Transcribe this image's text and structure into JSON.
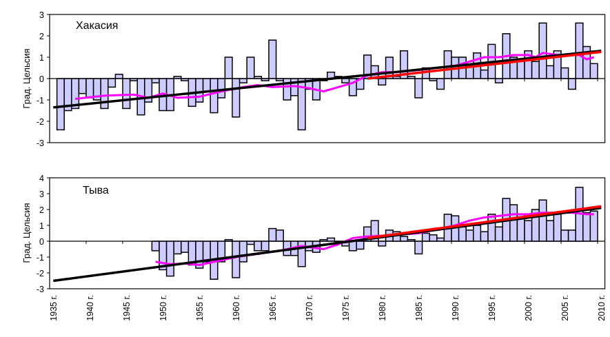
{
  "chart_data": [
    {
      "type": "bar",
      "title": "Хакасия",
      "ylabel": "Град. Цельсия",
      "xlabel": "",
      "ylim": [
        -3,
        3
      ],
      "yticks": [
        "3",
        "2",
        "1",
        "0",
        "-1",
        "-2",
        "-3"
      ],
      "ytick_values": [
        3,
        2,
        1,
        0,
        -1,
        -2,
        -3
      ],
      "grid": false,
      "first_year": 1936,
      "values": [
        -2.4,
        -1.5,
        -1.4,
        -0.7,
        -0.9,
        -1.0,
        -1.4,
        -0.4,
        0.2,
        -1.4,
        -0.1,
        -1.7,
        -1.1,
        -0.2,
        -1.5,
        -1.5,
        0.1,
        -0.1,
        -1.3,
        -1.1,
        -0.6,
        -1.6,
        -0.9,
        1.0,
        -1.8,
        -0.2,
        1.0,
        0.1,
        -0.1,
        1.8,
        -0.1,
        -1.0,
        -0.8,
        -2.4,
        -0.5,
        -1.0,
        -0.1,
        0.3,
        0.1,
        -0.2,
        -0.8,
        -0.5,
        1.1,
        0.6,
        -0.3,
        1.0,
        0.1,
        1.3,
        0.1,
        -0.9,
        0.5,
        -0.1,
        -0.5,
        1.3,
        1.0,
        1.0,
        0.6,
        1.2,
        0.4,
        1.6,
        -0.2,
        2.1,
        1.0,
        0.9,
        1.3,
        0.8,
        2.6,
        0.6,
        1.3,
        0.5,
        -0.5,
        2.6,
        1.5,
        0.7
      ],
      "moving_average": [
        [
          1938,
          -0.95
        ],
        [
          1942,
          -0.8
        ],
        [
          1946,
          -0.75
        ],
        [
          1948,
          -0.9
        ],
        [
          1950,
          -0.7
        ],
        [
          1952,
          -0.9
        ],
        [
          1955,
          -0.85
        ],
        [
          1958,
          -0.6
        ],
        [
          1961,
          -0.4
        ],
        [
          1963,
          -0.3
        ],
        [
          1965,
          -0.4
        ],
        [
          1968,
          -0.35
        ],
        [
          1970,
          -0.45
        ],
        [
          1972,
          -0.6
        ],
        [
          1974,
          -0.4
        ],
        [
          1976,
          -0.2
        ],
        [
          1978,
          0.15
        ],
        [
          1980,
          0.3
        ],
        [
          1982,
          0.3
        ],
        [
          1985,
          0.4
        ],
        [
          1990,
          0.6
        ],
        [
          1992,
          0.8
        ],
        [
          1994,
          1.0
        ],
        [
          1996,
          1.0
        ],
        [
          1998,
          1.1
        ],
        [
          2000,
          1.1
        ],
        [
          2001,
          1.0
        ],
        [
          2002,
          1.2
        ],
        [
          2004,
          1.1
        ],
        [
          2007,
          1.1
        ],
        [
          2008,
          0.9
        ],
        [
          2009,
          1.0
        ]
      ],
      "trend_all": [
        [
          1935,
          -1.35
        ],
        [
          2010,
          1.3
        ]
      ],
      "trend_recent": [
        [
          1978,
          0.0
        ],
        [
          2010,
          1.25
        ]
      ]
    },
    {
      "type": "bar",
      "title": "Тыва",
      "ylabel": "Град. Цельсия",
      "xlabel": "",
      "ylim": [
        -3,
        4
      ],
      "yticks": [
        "4",
        "3",
        "2",
        "1",
        "0",
        "-1",
        "-2",
        "-3"
      ],
      "ytick_values": [
        4,
        3,
        2,
        1,
        0,
        -1,
        -2,
        -3
      ],
      "grid": false,
      "first_year": 1949,
      "values": [
        -0.6,
        -1.8,
        -2.2,
        -0.8,
        -0.7,
        -1.5,
        -1.7,
        -1.3,
        -2.4,
        -1.3,
        0.1,
        -2.3,
        -1.3,
        -0.2,
        -0.6,
        -0.6,
        0.8,
        0.7,
        -0.9,
        -0.9,
        -1.6,
        -0.6,
        -0.7,
        0.1,
        0.2,
        0.0,
        -0.3,
        -0.6,
        -0.5,
        0.9,
        1.3,
        -0.3,
        0.7,
        0.6,
        0.3,
        0.1,
        -0.8,
        0.5,
        0.4,
        0.2,
        1.7,
        1.6,
        0.9,
        0.7,
        1.0,
        0.6,
        1.7,
        0.9,
        2.7,
        2.3,
        1.7,
        1.3,
        2.0,
        2.6,
        1.3,
        1.7,
        0.7,
        0.7,
        3.4,
        1.8,
        1.9
      ],
      "moving_average": [
        [
          1949,
          -1.3
        ],
        [
          1951,
          -1.45
        ],
        [
          1953,
          -1.4
        ],
        [
          1955,
          -1.5
        ],
        [
          1957,
          -1.3
        ],
        [
          1960,
          -1.0
        ],
        [
          1963,
          -0.8
        ],
        [
          1966,
          -0.6
        ],
        [
          1969,
          -0.3
        ],
        [
          1972,
          -0.5
        ],
        [
          1974,
          -0.2
        ],
        [
          1976,
          0.2
        ],
        [
          1978,
          0.3
        ],
        [
          1982,
          0.4
        ],
        [
          1985,
          0.5
        ],
        [
          1988,
          0.8
        ],
        [
          1990,
          1.0
        ],
        [
          1992,
          1.3
        ],
        [
          1994,
          1.5
        ],
        [
          1996,
          1.6
        ],
        [
          1998,
          1.7
        ],
        [
          2000,
          1.7
        ],
        [
          2002,
          1.8
        ],
        [
          2004,
          1.8
        ],
        [
          2006,
          1.8
        ],
        [
          2008,
          1.7
        ],
        [
          2009,
          1.7
        ]
      ],
      "trend_all": [
        [
          1935,
          -2.5
        ],
        [
          2010,
          2.1
        ]
      ],
      "trend_recent": [
        [
          1978,
          0.2
        ],
        [
          2010,
          2.2
        ]
      ]
    }
  ],
  "x_axis": {
    "year_range": [
      1935,
      2010
    ],
    "labels": [
      "1935 г.",
      "1940 г.",
      "1945 г.",
      "1950 г.",
      "1955 г.",
      "1960 г.",
      "1965 г.",
      "1970 г.",
      "1975 г.",
      "1980 г.",
      "1985 г.",
      "1990 г.",
      "1995 г.",
      "2000 г.",
      "2005 г.",
      "2010 г."
    ],
    "label_years": [
      1935,
      1940,
      1945,
      1950,
      1955,
      1960,
      1965,
      1970,
      1975,
      1980,
      1985,
      1990,
      1995,
      2000,
      2005,
      2010
    ]
  },
  "colors": {
    "bar_fill": "#ccccff",
    "bar_stroke": "#000000",
    "moving_average": "#ff00ff",
    "trend_all": "#000000",
    "trend_recent": "#ff0000"
  }
}
